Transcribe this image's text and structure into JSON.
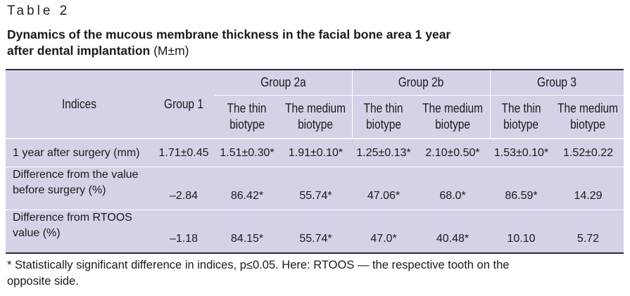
{
  "table_label": "Table 2",
  "caption": {
    "title_line1": "Dynamics of the mucous membrane thickness in the facial bone area 1 year",
    "title_line2": "after dental implantation",
    "title_suffix": "(M±m)"
  },
  "table": {
    "header": {
      "indices": "Indices",
      "group1": "Group 1",
      "group2a": "Group 2a",
      "group2b": "Group 2b",
      "group3": "Group 3",
      "thin_line1": "The thin",
      "thin_line2": "biotype",
      "medium_line1": "The medium",
      "medium_line2": "biotype"
    },
    "rows": [
      {
        "label": "1 year after surgery (mm)",
        "label_line2": "",
        "values": [
          "1.71±0.45",
          "1.51±0.30*",
          "1.91±0.10*",
          "1.25±0.13*",
          "2.10±0.50*",
          "1.53±0.10*",
          "1.52±0.22"
        ]
      },
      {
        "label": "Difference from the value",
        "label_line2": "before surgery (%)",
        "values": [
          "–2.84",
          "86.42*",
          "55.74*",
          "47.06*",
          "68.0*",
          "86.59*",
          "14.29"
        ]
      },
      {
        "label": "Difference from RTOOS",
        "label_line2": "value (%)",
        "values": [
          "–1.18",
          "84.15*",
          "55.74*",
          "47.0*",
          "40.48*",
          "10.10",
          "5.72"
        ]
      }
    ]
  },
  "footnote": {
    "line1": "* Statistically significant difference in indices, p≤0.05. Here: RTOOS — the respective tooth on the",
    "line2": "opposite side."
  },
  "colors": {
    "table_background": "#d5d1e7",
    "rule": "#2d2d3a",
    "separator": "#ffffff"
  }
}
